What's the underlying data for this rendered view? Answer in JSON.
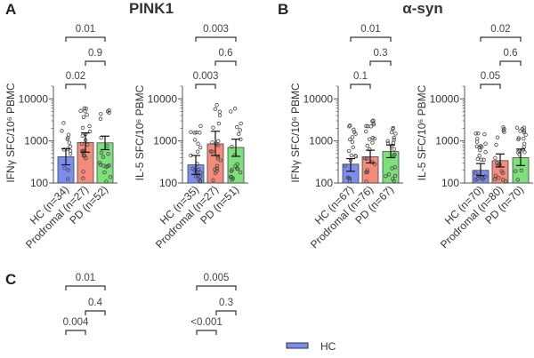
{
  "panels": {
    "A": {
      "letter": "A",
      "title": "PINK1"
    },
    "B": {
      "letter": "B",
      "title": "α-syn"
    },
    "C": {
      "letter": "C"
    }
  },
  "colors": {
    "HC": "#7b8ef0",
    "Prodromal": "#f58b7a",
    "PD": "#7de07a"
  },
  "legend": [
    {
      "label": "HC",
      "color": "#7b8ef0"
    }
  ],
  "chart_data": [
    {
      "type": "bar",
      "panel": "A",
      "ylabel": "IFNγ SFC/10⁶ PBMC",
      "yscale": "log",
      "ylim": [
        100,
        20000
      ],
      "yticks": [
        "100",
        "1000",
        "10000"
      ],
      "categories": [
        "HC (n=34)",
        "Prodromal (n=27)",
        "PD (n=52)"
      ],
      "values": [
        420,
        920,
        900
      ],
      "error_low": [
        270,
        540,
        620
      ],
      "error_high": [
        650,
        1550,
        1300
      ],
      "comparisons": [
        {
          "pair": [
            0,
            1
          ],
          "p": "0.02"
        },
        {
          "pair": [
            1,
            2
          ],
          "p": "0.9"
        },
        {
          "pair": [
            0,
            2
          ],
          "p": "0.01"
        }
      ]
    },
    {
      "type": "bar",
      "panel": "A",
      "ylabel": "IL-5 SFC/10⁶ PBMC",
      "yscale": "log",
      "ylim": [
        100,
        20000
      ],
      "yticks": [
        "100",
        "1000",
        "10000"
      ],
      "categories": [
        "HC (n=35)",
        "Prodromal (n=27)",
        "PD (n=51)"
      ],
      "values": [
        270,
        850,
        700
      ],
      "error_low": [
        160,
        450,
        430
      ],
      "error_high": [
        450,
        1700,
        1100
      ],
      "comparisons": [
        {
          "pair": [
            0,
            1
          ],
          "p": "0.003"
        },
        {
          "pair": [
            1,
            2
          ],
          "p": "0.6"
        },
        {
          "pair": [
            0,
            2
          ],
          "p": "0.003"
        }
      ]
    },
    {
      "type": "bar",
      "panel": "B",
      "ylabel": "IFNγ SFC/10⁶ PBMC",
      "yscale": "log",
      "ylim": [
        100,
        20000
      ],
      "yticks": [
        "100",
        "1000",
        "10000"
      ],
      "categories": [
        "HC (n=67)",
        "Prodromal (n=76)",
        "PD (n=67)"
      ],
      "values": [
        280,
        420,
        560
      ],
      "error_low": [
        190,
        300,
        400
      ],
      "error_high": [
        380,
        600,
        800
      ],
      "comparisons": [
        {
          "pair": [
            0,
            1
          ],
          "p": "0.1"
        },
        {
          "pair": [
            1,
            2
          ],
          "p": "0.3"
        },
        {
          "pair": [
            0,
            2
          ],
          "p": "0.01"
        }
      ]
    },
    {
      "type": "bar",
      "panel": "B",
      "ylabel": "IL-5 SFC/10⁶ PBMC",
      "yscale": "log",
      "ylim": [
        100,
        20000
      ],
      "yticks": [
        "100",
        "1000",
        "10000"
      ],
      "categories": [
        "HC (n=70)",
        "Prodromal (n=80)",
        "PD (n=70)"
      ],
      "values": [
        200,
        340,
        400
      ],
      "error_low": [
        150,
        240,
        260
      ],
      "error_high": [
        290,
        490,
        640
      ],
      "comparisons": [
        {
          "pair": [
            0,
            1
          ],
          "p": "0.05"
        },
        {
          "pair": [
            1,
            2
          ],
          "p": "0.6"
        },
        {
          "pair": [
            0,
            2
          ],
          "p": "0.02"
        }
      ]
    },
    {
      "type": "bar",
      "panel": "C",
      "partial": true,
      "comparisons": [
        {
          "pair": [
            0,
            1
          ],
          "p": "0.004"
        },
        {
          "pair": [
            1,
            2
          ],
          "p": "0.4"
        },
        {
          "pair": [
            0,
            2
          ],
          "p": "0.01"
        }
      ]
    },
    {
      "type": "bar",
      "panel": "C",
      "partial": true,
      "comparisons": [
        {
          "pair": [
            0,
            1
          ],
          "p": "<0.001"
        },
        {
          "pair": [
            1,
            2
          ],
          "p": "0.3"
        },
        {
          "pair": [
            0,
            2
          ],
          "p": "0.005"
        }
      ]
    }
  ]
}
